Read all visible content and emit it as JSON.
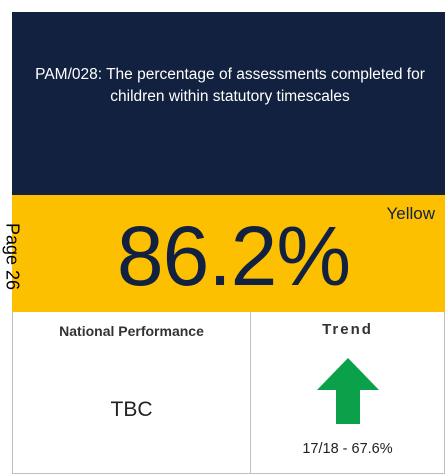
{
  "header": {
    "title": "PAM/028: The percentage of assessments completed for children within statutory timescales"
  },
  "status": {
    "value": "86.2%",
    "rating": "Yellow"
  },
  "page_label": "Page 26",
  "national": {
    "heading": "National Performance",
    "value": "TBC"
  },
  "trend": {
    "heading": "Trend",
    "previous": "17/18 - 67.6%"
  }
}
